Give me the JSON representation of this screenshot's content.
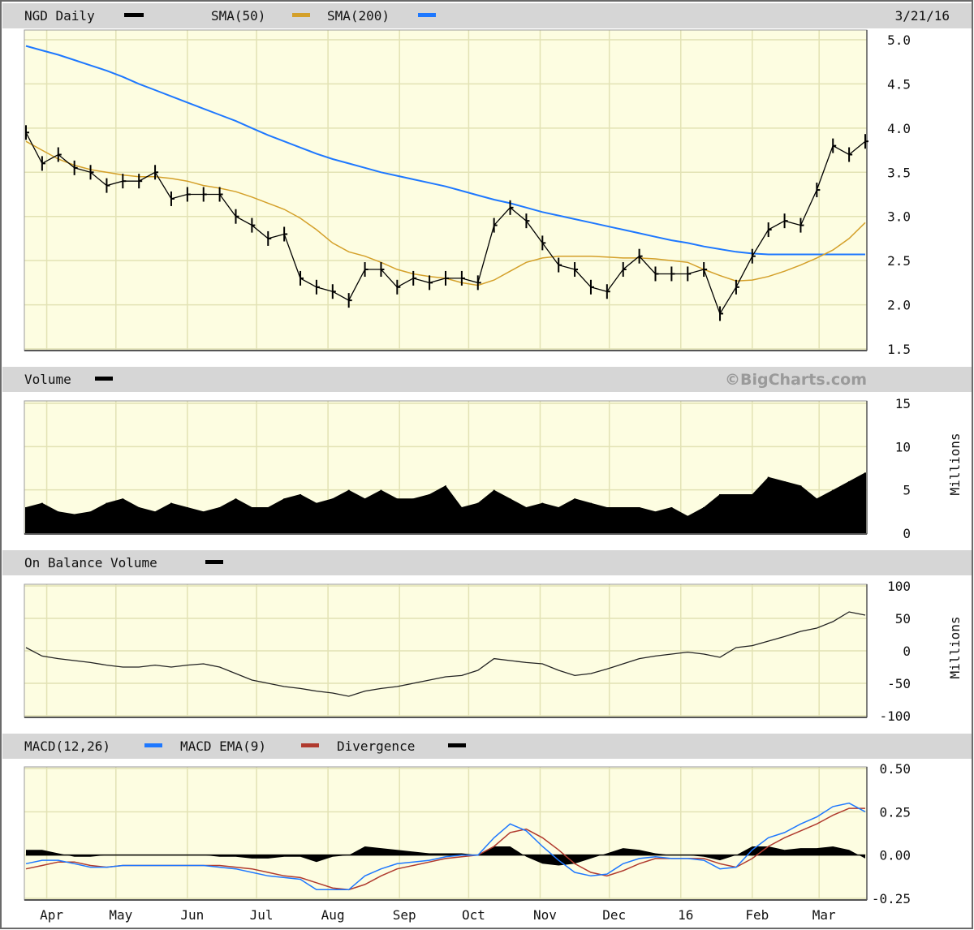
{
  "header": {
    "symbol_label": "NGD Daily",
    "sma50_label": "SMA(50)",
    "sma200_label": "SMA(200)",
    "date": "3/21/16",
    "watermark": "©BigCharts.com"
  },
  "panels": {
    "volume_label": "Volume",
    "obv_label": "On Balance Volume",
    "macd_label": "MACD(12,26)",
    "macd_ema_label": "MACD EMA(9)",
    "divergence_label": "Divergence",
    "units_volume": "Millions",
    "units_obv": "Millions"
  },
  "colors": {
    "price": "#000000",
    "sma50": "#d4a02a",
    "sma200": "#1e78ff",
    "macd": "#1e78ff",
    "macd_ema": "#b03a2e",
    "plot_bg": "#fdfde1",
    "grid": "#e2e2b4",
    "strip": "#d6d6d6"
  },
  "chart_data": [
    {
      "type": "line",
      "title": "NGD Daily",
      "x_tick_labels": [
        "Apr",
        "May",
        "Jun",
        "Jul",
        "Aug",
        "Sep",
        "Oct",
        "Nov",
        "Dec",
        "16",
        "Feb",
        "Mar"
      ],
      "y_tick_labels": [
        "5.0",
        "4.5",
        "4.0",
        "3.5",
        "3.0",
        "2.5",
        "2.0",
        "1.5"
      ],
      "ylim": [
        1.5,
        5.0
      ],
      "grid": true,
      "dates": [
        "2015-03-23",
        "2015-03-30",
        "2015-04-06",
        "2015-04-13",
        "2015-04-20",
        "2015-04-27",
        "2015-05-04",
        "2015-05-11",
        "2015-05-18",
        "2015-05-25",
        "2015-06-01",
        "2015-06-08",
        "2015-06-15",
        "2015-06-22",
        "2015-06-29",
        "2015-07-06",
        "2015-07-13",
        "2015-07-20",
        "2015-07-27",
        "2015-08-03",
        "2015-08-10",
        "2015-08-17",
        "2015-08-24",
        "2015-08-31",
        "2015-09-07",
        "2015-09-14",
        "2015-09-21",
        "2015-09-28",
        "2015-10-05",
        "2015-10-12",
        "2015-10-19",
        "2015-10-26",
        "2015-11-02",
        "2015-11-09",
        "2015-11-16",
        "2015-11-23",
        "2015-11-30",
        "2015-12-07",
        "2015-12-14",
        "2015-12-21",
        "2015-12-28",
        "2016-01-04",
        "2016-01-11",
        "2016-01-18",
        "2016-01-25",
        "2016-02-01",
        "2016-02-08",
        "2016-02-15",
        "2016-02-22",
        "2016-02-29",
        "2016-03-07",
        "2016-03-14",
        "2016-03-21"
      ],
      "series": [
        {
          "name": "NGD Daily",
          "values": [
            3.95,
            3.6,
            3.7,
            3.55,
            3.5,
            3.35,
            3.4,
            3.4,
            3.5,
            3.2,
            3.25,
            3.25,
            3.25,
            3.0,
            2.9,
            2.75,
            2.8,
            2.3,
            2.2,
            2.15,
            2.05,
            2.4,
            2.4,
            2.2,
            2.3,
            2.25,
            2.3,
            2.3,
            2.25,
            2.9,
            3.1,
            2.95,
            2.7,
            2.45,
            2.4,
            2.2,
            2.15,
            2.4,
            2.55,
            2.35,
            2.35,
            2.35,
            2.4,
            1.9,
            2.2,
            2.55,
            2.85,
            2.95,
            2.9,
            3.3,
            3.8,
            3.7,
            3.85
          ]
        },
        {
          "name": "SMA(50)",
          "values": [
            3.85,
            3.75,
            3.65,
            3.58,
            3.53,
            3.5,
            3.47,
            3.45,
            3.45,
            3.43,
            3.4,
            3.35,
            3.32,
            3.28,
            3.22,
            3.15,
            3.08,
            2.98,
            2.85,
            2.7,
            2.6,
            2.55,
            2.48,
            2.4,
            2.35,
            2.32,
            2.3,
            2.25,
            2.22,
            2.28,
            2.38,
            2.48,
            2.53,
            2.55,
            2.55,
            2.55,
            2.54,
            2.53,
            2.53,
            2.52,
            2.5,
            2.48,
            2.4,
            2.33,
            2.27,
            2.28,
            2.32,
            2.38,
            2.45,
            2.53,
            2.62,
            2.75,
            2.93
          ]
        },
        {
          "name": "SMA(200)",
          "values": [
            4.93,
            4.88,
            4.83,
            4.77,
            4.71,
            4.65,
            4.58,
            4.5,
            4.43,
            4.36,
            4.29,
            4.22,
            4.15,
            4.08,
            4.0,
            3.92,
            3.85,
            3.78,
            3.71,
            3.65,
            3.6,
            3.55,
            3.5,
            3.46,
            3.42,
            3.38,
            3.34,
            3.29,
            3.24,
            3.19,
            3.15,
            3.1,
            3.05,
            3.01,
            2.97,
            2.93,
            2.89,
            2.85,
            2.81,
            2.77,
            2.73,
            2.7,
            2.66,
            2.63,
            2.6,
            2.58,
            2.57,
            2.57,
            2.57,
            2.57,
            2.57,
            2.57,
            2.57
          ]
        }
      ]
    },
    {
      "type": "area",
      "title": "Volume",
      "ylabel": "Millions",
      "y_tick_labels": [
        "15",
        "10",
        "5",
        "0"
      ],
      "ylim": [
        0,
        15
      ],
      "grid": true,
      "series": [
        {
          "name": "Volume",
          "values": [
            3,
            3.5,
            2.5,
            2.2,
            2.5,
            3.5,
            4,
            3,
            2.5,
            3.5,
            3,
            2.5,
            3,
            4,
            3,
            3,
            4,
            4.5,
            3.5,
            4,
            5,
            4,
            5,
            4,
            4,
            4.5,
            5.5,
            3,
            3.5,
            5,
            4,
            3,
            3.5,
            3,
            4,
            3.5,
            3,
            3,
            3,
            2.5,
            3,
            2,
            3,
            4.5,
            4.5,
            4.5,
            6.5,
            6,
            5.5,
            4,
            5,
            6,
            7
          ]
        }
      ]
    },
    {
      "type": "line",
      "title": "On Balance Volume",
      "ylabel": "Millions",
      "y_tick_labels": [
        "100",
        "50",
        "0",
        "-50",
        "-100"
      ],
      "ylim": [
        -100,
        100
      ],
      "grid": true,
      "series": [
        {
          "name": "On Balance Volume",
          "values": [
            5,
            -8,
            -12,
            -15,
            -18,
            -22,
            -25,
            -25,
            -22,
            -25,
            -22,
            -20,
            -25,
            -35,
            -45,
            -50,
            -55,
            -58,
            -62,
            -65,
            -70,
            -62,
            -58,
            -55,
            -50,
            -45,
            -40,
            -38,
            -30,
            -12,
            -15,
            -18,
            -20,
            -30,
            -38,
            -35,
            -28,
            -20,
            -12,
            -8,
            -5,
            -2,
            -5,
            -10,
            5,
            8,
            15,
            22,
            30,
            35,
            45,
            60,
            55
          ]
        }
      ]
    },
    {
      "type": "line",
      "title": "MACD(12,26)",
      "y_tick_labels": [
        "0.50",
        "0.25",
        "0.00",
        "-0.25"
      ],
      "ylim": [
        -0.25,
        0.5
      ],
      "grid": true,
      "series": [
        {
          "name": "MACD(12,26)",
          "values": [
            -0.05,
            -0.03,
            -0.03,
            -0.05,
            -0.07,
            -0.07,
            -0.06,
            -0.06,
            -0.06,
            -0.06,
            -0.06,
            -0.06,
            -0.07,
            -0.08,
            -0.1,
            -0.12,
            -0.13,
            -0.14,
            -0.2,
            -0.2,
            -0.2,
            -0.12,
            -0.08,
            -0.05,
            -0.04,
            -0.03,
            -0.01,
            0.0,
            0.0,
            0.1,
            0.18,
            0.14,
            0.05,
            -0.03,
            -0.1,
            -0.12,
            -0.11,
            -0.05,
            -0.02,
            -0.01,
            -0.02,
            -0.02,
            -0.03,
            -0.08,
            -0.07,
            0.03,
            0.1,
            0.13,
            0.18,
            0.22,
            0.28,
            0.3,
            0.25
          ]
        },
        {
          "name": "MACD EMA(9)",
          "values": [
            -0.08,
            -0.06,
            -0.04,
            -0.04,
            -0.06,
            -0.07,
            -0.06,
            -0.06,
            -0.06,
            -0.06,
            -0.06,
            -0.06,
            -0.06,
            -0.07,
            -0.08,
            -0.1,
            -0.12,
            -0.13,
            -0.16,
            -0.19,
            -0.2,
            -0.17,
            -0.12,
            -0.08,
            -0.06,
            -0.04,
            -0.02,
            -0.01,
            0.0,
            0.05,
            0.13,
            0.15,
            0.1,
            0.03,
            -0.05,
            -0.1,
            -0.12,
            -0.09,
            -0.05,
            -0.02,
            -0.02,
            -0.02,
            -0.02,
            -0.05,
            -0.07,
            -0.02,
            0.05,
            0.1,
            0.14,
            0.18,
            0.23,
            0.27,
            0.27
          ]
        }
      ]
    }
  ]
}
